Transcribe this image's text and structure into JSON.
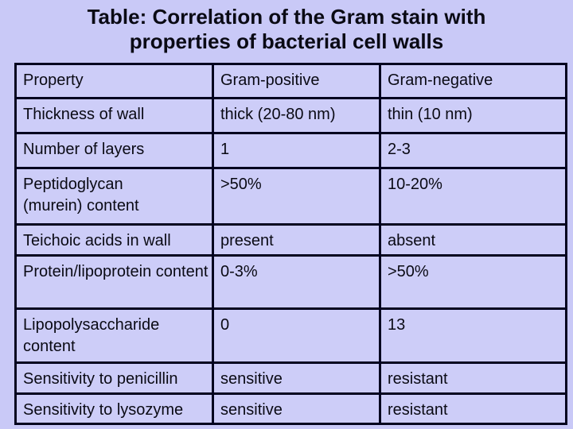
{
  "slide": {
    "title_line1": "Table: Correlation of the Gram stain with",
    "title_line2": "properties of bacterial cell walls",
    "colors": {
      "background": "#c9c9f7",
      "cell_fill": "#cdcdf8",
      "table_border": "#03031f",
      "text": "#0a0a14"
    }
  },
  "table": {
    "columns": [
      "Property",
      "Gram-positive",
      "Gram-negative"
    ],
    "rows": [
      {
        "property": "Thickness of wall",
        "gram_positive": "thick (20-80 nm)",
        "gram_negative": "thin (10 nm)"
      },
      {
        "property": "Number of layers",
        "gram_positive": "1",
        "gram_negative": "2-3"
      },
      {
        "property": "Peptidoglycan\n(murein) content",
        "gram_positive": ">50%",
        "gram_negative": "10-20%"
      },
      {
        "property": "Teichoic acids in wall",
        "gram_positive": "present",
        "gram_negative": "absent"
      },
      {
        "property": "Protein/lipoprotein content",
        "gram_positive": "0-3%",
        "gram_negative": ">50%"
      },
      {
        "property": "Lipopolysaccharide content",
        "gram_positive": "0",
        "gram_negative": "13"
      },
      {
        "property": "Sensitivity to penicillin",
        "gram_positive": "sensitive",
        "gram_negative": "resistant"
      },
      {
        "property": "Sensitivity to lysozyme",
        "gram_positive": "sensitive",
        "gram_negative": "resistant"
      }
    ]
  }
}
